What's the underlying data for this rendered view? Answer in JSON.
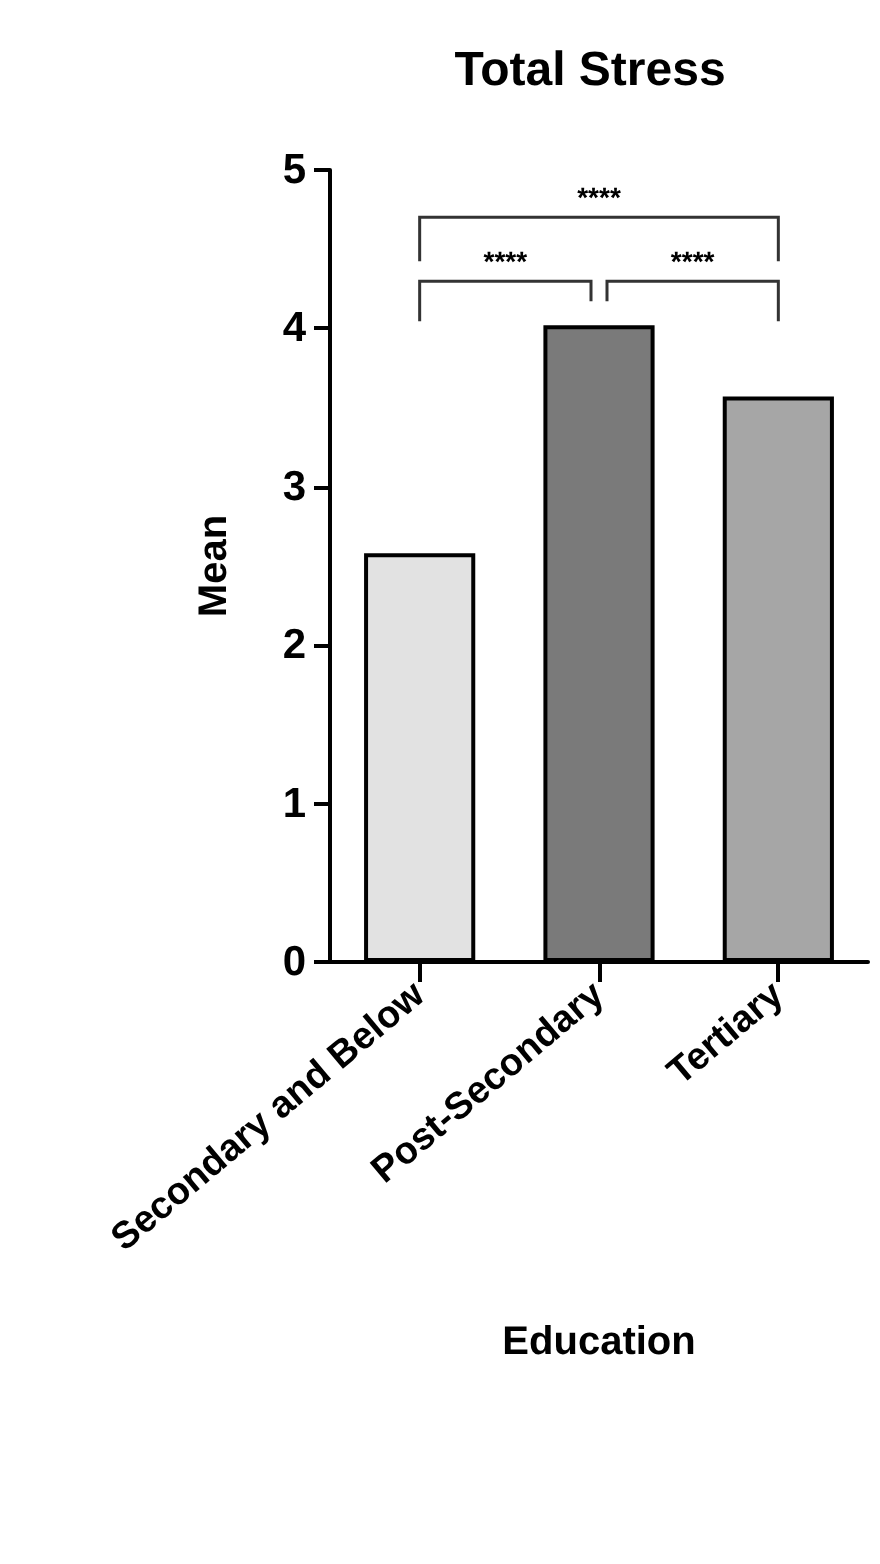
{
  "chart_data": {
    "type": "bar",
    "title": "Total Stress",
    "xlabel": "Education",
    "ylabel": "Mean",
    "categories": [
      "Secondary and Below",
      "Post-Secondary",
      "Tertiary"
    ],
    "values": [
      2.58,
      4.02,
      3.57
    ],
    "colors": [
      "#e2e2e2",
      "#7a7a7a",
      "#a6a6a6"
    ],
    "ylim": [
      0,
      5
    ],
    "yticks": [
      0,
      1,
      2,
      3,
      4,
      5
    ],
    "grid": false,
    "annotations": [
      "****",
      "****",
      "****"
    ]
  }
}
